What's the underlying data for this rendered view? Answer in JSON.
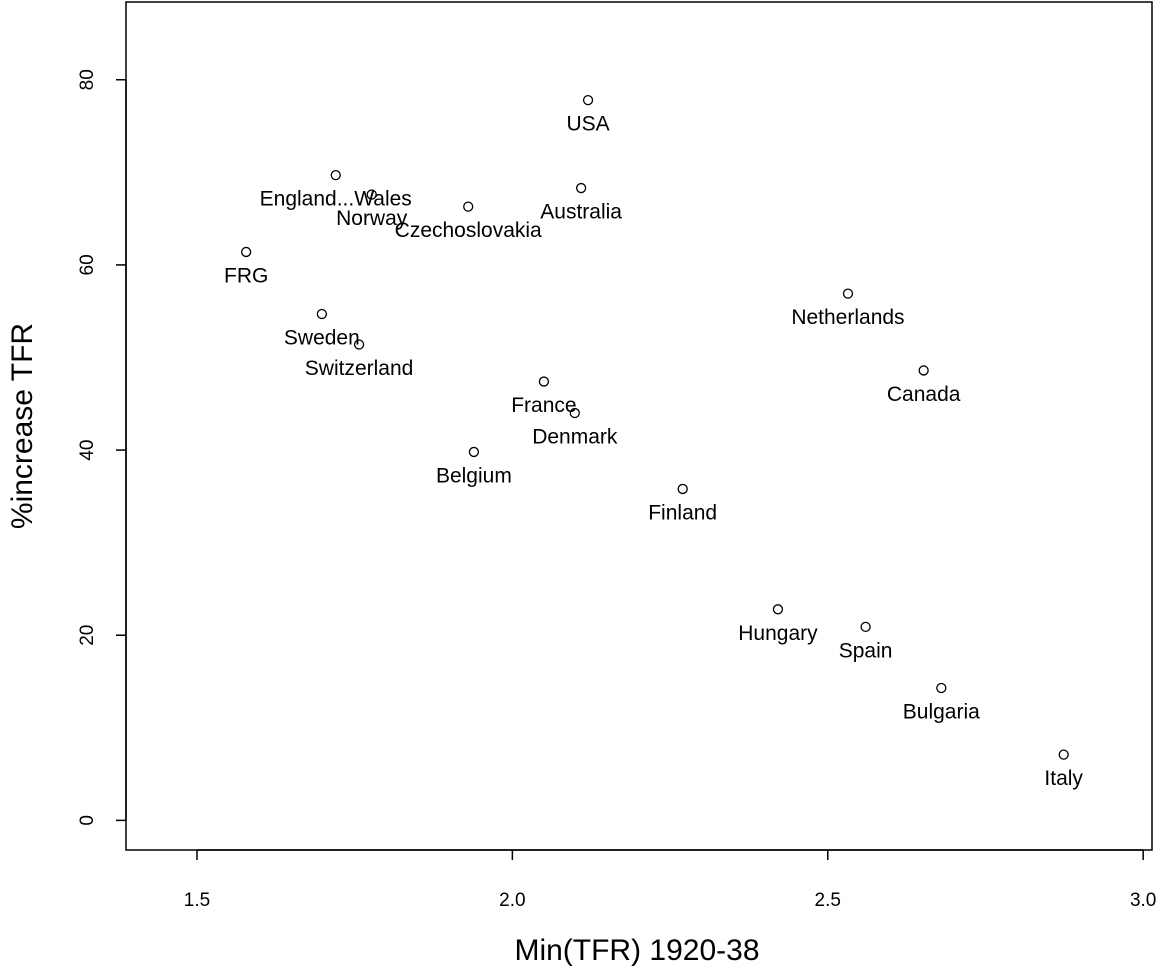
{
  "chart_data": {
    "type": "scatter",
    "x_label": "Min(TFR) 1920-38",
    "y_label": "%increase TFR",
    "labels": [
      "USA",
      "England...Wales",
      "Norway",
      "Australia",
      "Czechoslovakia",
      "FRG",
      "Sweden",
      "Switzerland",
      "Netherlands",
      "Canada",
      "France",
      "Denmark",
      "Belgium",
      "Finland",
      "Hungary",
      "Spain",
      "Bulgaria",
      "Italy"
    ],
    "x": [
      2.12,
      1.72,
      1.777,
      2.109,
      1.93,
      1.578,
      1.698,
      1.757,
      2.532,
      2.652,
      2.05,
      2.099,
      1.939,
      2.27,
      2.421,
      2.56,
      2.68,
      2.874
    ],
    "values": [
      77.8,
      69.7,
      67.6,
      68.3,
      66.3,
      61.4,
      54.7,
      51.4,
      56.9,
      48.6,
      47.4,
      44.0,
      39.8,
      35.8,
      22.8,
      20.9,
      14.3,
      7.1
    ],
    "color": "#000000",
    "xlim": [
      1.3875,
      3.014
    ],
    "ylim": [
      -3.2,
      88.4
    ],
    "xticks": [
      1.5,
      {
        "value": 2,
        "label": "2.0"
      },
      2.5,
      {
        "value": 3,
        "label": "3.0"
      }
    ],
    "yticks": [
      0,
      20,
      40,
      60,
      80
    ]
  }
}
